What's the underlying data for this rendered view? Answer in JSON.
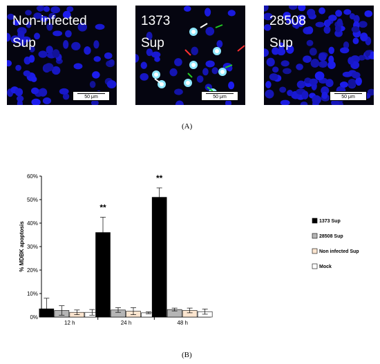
{
  "panel_a": {
    "caption": "(A)",
    "images": [
      {
        "label_line1": "Non-infected",
        "label_line2": "Sup",
        "scale_label": "50 μm"
      },
      {
        "label_line1": "1373",
        "label_line2": "Sup",
        "scale_label": "50 μm"
      },
      {
        "label_line1": "28508",
        "label_line2": "Sup",
        "scale_label": "50 μm"
      }
    ]
  },
  "panel_b": {
    "caption": "(B)"
  },
  "chart_data": {
    "type": "bar",
    "ylabel": "% MDBK apoptosis",
    "ylim": [
      0,
      60
    ],
    "yticks": [
      "0%",
      "10%",
      "20%",
      "30%",
      "40%",
      "50%",
      "60%"
    ],
    "categories": [
      "12 h",
      "24 h",
      "48 h"
    ],
    "series": [
      {
        "name": "1373 Sup",
        "values": [
          3.5,
          36,
          51
        ],
        "errors": [
          4.5,
          6.5,
          4
        ],
        "color": "#000000"
      },
      {
        "name": "28508 Sup",
        "values": [
          2.8,
          3,
          3.2
        ],
        "errors": [
          2,
          1,
          0.6
        ],
        "color": "#b5b5b5"
      },
      {
        "name": "Non infected Sup",
        "values": [
          2,
          2.5,
          2.8
        ],
        "errors": [
          1,
          1.5,
          1
        ],
        "color": "#fbe5cf"
      },
      {
        "name": "Mock",
        "values": [
          2,
          1.8,
          2.3
        ],
        "errors": [
          1.2,
          0.4,
          1.1
        ],
        "color": "#ffffff"
      }
    ],
    "annotations": [
      {
        "category": "24 h",
        "text": "**"
      },
      {
        "category": "48 h",
        "text": "**"
      }
    ],
    "legend_position": "right",
    "grid": false
  }
}
